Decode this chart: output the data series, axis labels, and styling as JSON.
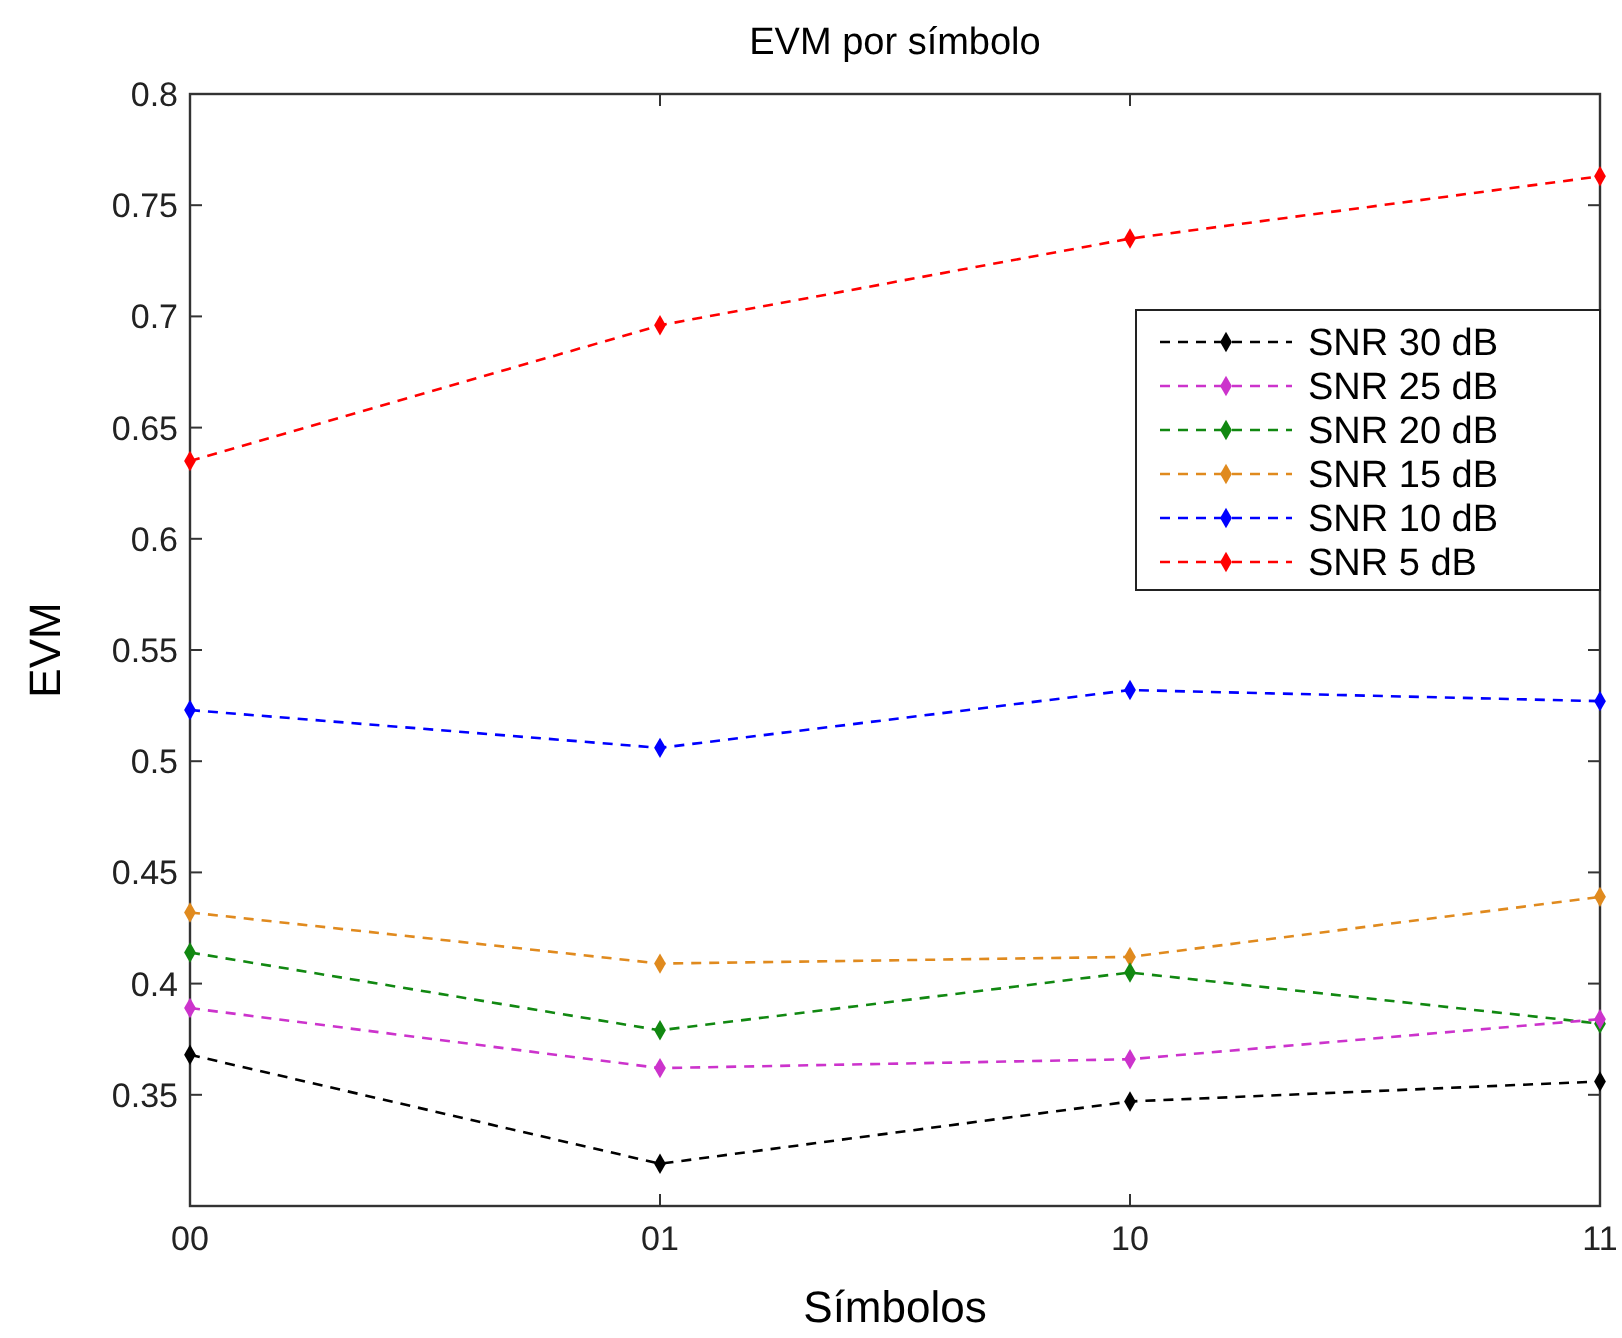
{
  "chart_data": {
    "type": "line",
    "title": "EVM por símbolo",
    "xlabel": "Símbolos",
    "ylabel": "EVM",
    "categories": [
      "00",
      "01",
      "10",
      "11"
    ],
    "ylim": [
      0.3,
      0.8
    ],
    "yticks": [
      0.35,
      0.4,
      0.45,
      0.5,
      0.55,
      0.6,
      0.65,
      0.7,
      0.75,
      0.8
    ],
    "grid": false,
    "legend": "right",
    "marker": "diamond",
    "line_style": "dashed",
    "series": [
      {
        "name": "SNR 30 dB",
        "color": "#000000",
        "values": [
          0.368,
          0.319,
          0.347,
          0.356
        ]
      },
      {
        "name": "SNR 25 dB",
        "color": "#cc33cc",
        "values": [
          0.389,
          0.362,
          0.366,
          0.384
        ]
      },
      {
        "name": "SNR 20 dB",
        "color": "#118811",
        "values": [
          0.414,
          0.379,
          0.405,
          0.382
        ]
      },
      {
        "name": "SNR 15 dB",
        "color": "#e08a1e",
        "values": [
          0.432,
          0.409,
          0.412,
          0.439
        ]
      },
      {
        "name": "SNR 10 dB",
        "color": "#0000ff",
        "values": [
          0.523,
          0.506,
          0.532,
          0.527
        ]
      },
      {
        "name": "SNR 5 dB",
        "color": "#ff0000",
        "values": [
          0.635,
          0.696,
          0.735,
          0.763
        ]
      }
    ]
  }
}
